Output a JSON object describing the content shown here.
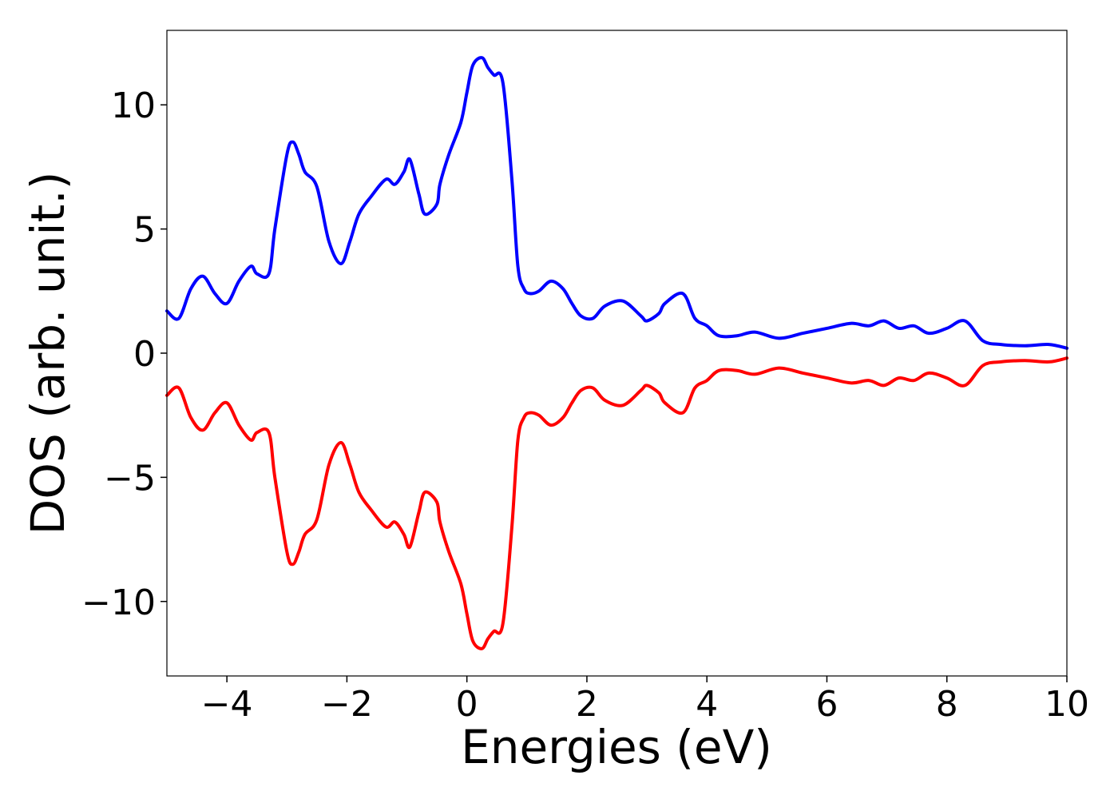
{
  "chart_data": {
    "type": "line",
    "title": "",
    "xlabel": "Energies (eV)",
    "ylabel": "DOS (arb. unit.)",
    "xlim": [
      -5,
      10
    ],
    "ylim": [
      -13,
      13
    ],
    "xticks": [
      -4,
      -2,
      0,
      2,
      4,
      6,
      8,
      10
    ],
    "xtick_labels": [
      "−4",
      "−2",
      "0",
      "2",
      "4",
      "6",
      "8",
      "10"
    ],
    "yticks": [
      -10,
      -5,
      0,
      5,
      10
    ],
    "ytick_labels": [
      "−10",
      "−5",
      "0",
      "5",
      "10"
    ],
    "grid": false,
    "legend": false,
    "series": [
      {
        "color": "#0000ff",
        "x": [
          -5.0,
          -4.8,
          -4.6,
          -4.4,
          -4.2,
          -4.0,
          -3.8,
          -3.6,
          -3.5,
          -3.3,
          -3.2,
          -3.0,
          -2.9,
          -2.8,
          -2.7,
          -2.5,
          -2.3,
          -2.1,
          -1.95,
          -1.8,
          -1.6,
          -1.35,
          -1.2,
          -1.05,
          -0.95,
          -0.8,
          -0.7,
          -0.5,
          -0.45,
          -0.3,
          -0.1,
          0.0,
          0.1,
          0.25,
          0.35,
          0.45,
          0.6,
          0.75,
          0.85,
          0.95,
          1.05,
          1.2,
          1.4,
          1.6,
          1.75,
          1.9,
          2.1,
          2.3,
          2.6,
          2.9,
          3.0,
          3.2,
          3.3,
          3.6,
          3.8,
          4.0,
          4.2,
          4.5,
          4.8,
          5.2,
          5.6,
          6.0,
          6.4,
          6.7,
          6.95,
          7.2,
          7.45,
          7.7,
          8.0,
          8.3,
          8.6,
          8.9,
          9.3,
          9.7,
          10.0
        ],
        "values": [
          1.7,
          1.4,
          2.6,
          3.1,
          2.4,
          2.0,
          2.9,
          3.5,
          3.2,
          3.2,
          5.0,
          8.0,
          8.5,
          8.0,
          7.3,
          6.7,
          4.5,
          3.6,
          4.5,
          5.6,
          6.3,
          7.0,
          6.8,
          7.3,
          7.8,
          6.4,
          5.6,
          6.0,
          6.8,
          8.0,
          9.3,
          10.5,
          11.6,
          11.9,
          11.5,
          11.2,
          10.9,
          7.0,
          3.5,
          2.6,
          2.4,
          2.5,
          2.9,
          2.6,
          2.0,
          1.5,
          1.4,
          1.9,
          2.1,
          1.5,
          1.3,
          1.6,
          2.0,
          2.4,
          1.4,
          1.1,
          0.7,
          0.7,
          0.85,
          0.6,
          0.8,
          1.0,
          1.2,
          1.1,
          1.3,
          1.0,
          1.1,
          0.8,
          1.0,
          1.3,
          0.5,
          0.35,
          0.3,
          0.35,
          0.2
        ]
      },
      {
        "color": "#ff0000",
        "x": [
          -5.0,
          -4.8,
          -4.6,
          -4.4,
          -4.2,
          -4.0,
          -3.8,
          -3.6,
          -3.5,
          -3.3,
          -3.2,
          -3.0,
          -2.9,
          -2.8,
          -2.7,
          -2.5,
          -2.3,
          -2.1,
          -1.95,
          -1.8,
          -1.6,
          -1.35,
          -1.2,
          -1.05,
          -0.95,
          -0.8,
          -0.7,
          -0.5,
          -0.45,
          -0.3,
          -0.1,
          0.0,
          0.1,
          0.25,
          0.35,
          0.45,
          0.6,
          0.75,
          0.85,
          0.95,
          1.05,
          1.2,
          1.4,
          1.6,
          1.75,
          1.9,
          2.1,
          2.3,
          2.6,
          2.9,
          3.0,
          3.2,
          3.3,
          3.6,
          3.8,
          4.0,
          4.2,
          4.5,
          4.8,
          5.2,
          5.6,
          6.0,
          6.4,
          6.7,
          6.95,
          7.2,
          7.45,
          7.7,
          8.0,
          8.3,
          8.6,
          8.9,
          9.3,
          9.7,
          10.0
        ],
        "values": [
          -1.7,
          -1.4,
          -2.6,
          -3.1,
          -2.4,
          -2.0,
          -2.9,
          -3.5,
          -3.2,
          -3.2,
          -5.0,
          -8.0,
          -8.5,
          -8.0,
          -7.3,
          -6.7,
          -4.5,
          -3.6,
          -4.5,
          -5.6,
          -6.3,
          -7.0,
          -6.8,
          -7.3,
          -7.8,
          -6.4,
          -5.6,
          -6.0,
          -6.8,
          -8.0,
          -9.3,
          -10.5,
          -11.6,
          -11.9,
          -11.5,
          -11.2,
          -10.9,
          -7.0,
          -3.5,
          -2.6,
          -2.4,
          -2.5,
          -2.9,
          -2.6,
          -2.0,
          -1.5,
          -1.4,
          -1.9,
          -2.1,
          -1.5,
          -1.3,
          -1.6,
          -2.0,
          -2.4,
          -1.4,
          -1.1,
          -0.7,
          -0.7,
          -0.85,
          -0.6,
          -0.8,
          -1.0,
          -1.2,
          -1.1,
          -1.3,
          -1.0,
          -1.1,
          -0.8,
          -1.0,
          -1.3,
          -0.5,
          -0.35,
          -0.3,
          -0.35,
          -0.2
        ]
      }
    ]
  }
}
